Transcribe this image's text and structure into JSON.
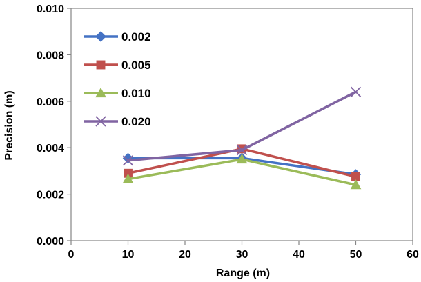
{
  "chart_data": {
    "type": "line",
    "title": "",
    "xlabel": "Range (m)",
    "ylabel": "Precision (m)",
    "xlim": [
      0,
      60
    ],
    "ylim": [
      0,
      0.01
    ],
    "xticks": [
      0,
      10,
      20,
      30,
      40,
      50,
      60
    ],
    "xtick_labels": [
      "0",
      "10",
      "20",
      "30",
      "40",
      "50",
      "60"
    ],
    "yticks": [
      0,
      0.002,
      0.004,
      0.006,
      0.008,
      0.01
    ],
    "ytick_labels": [
      "0.000",
      "0.002",
      "0.004",
      "0.006",
      "0.008",
      "0.010"
    ],
    "grid": false,
    "legend_position": "top-left",
    "x": [
      10,
      30,
      50
    ],
    "series": [
      {
        "name": "0.002",
        "values": [
          0.00355,
          0.00355,
          0.00285
        ],
        "color": "#4472C4",
        "marker": "diamond"
      },
      {
        "name": "0.005",
        "values": [
          0.0029,
          0.00395,
          0.00275
        ],
        "color": "#C0504D",
        "marker": "square"
      },
      {
        "name": "0.010",
        "values": [
          0.00265,
          0.0035,
          0.0024
        ],
        "color": "#9BBB59",
        "marker": "triangle"
      },
      {
        "name": "0.020",
        "values": [
          0.00345,
          0.0039,
          0.0064
        ],
        "color": "#8064A2",
        "marker": "x"
      }
    ]
  }
}
